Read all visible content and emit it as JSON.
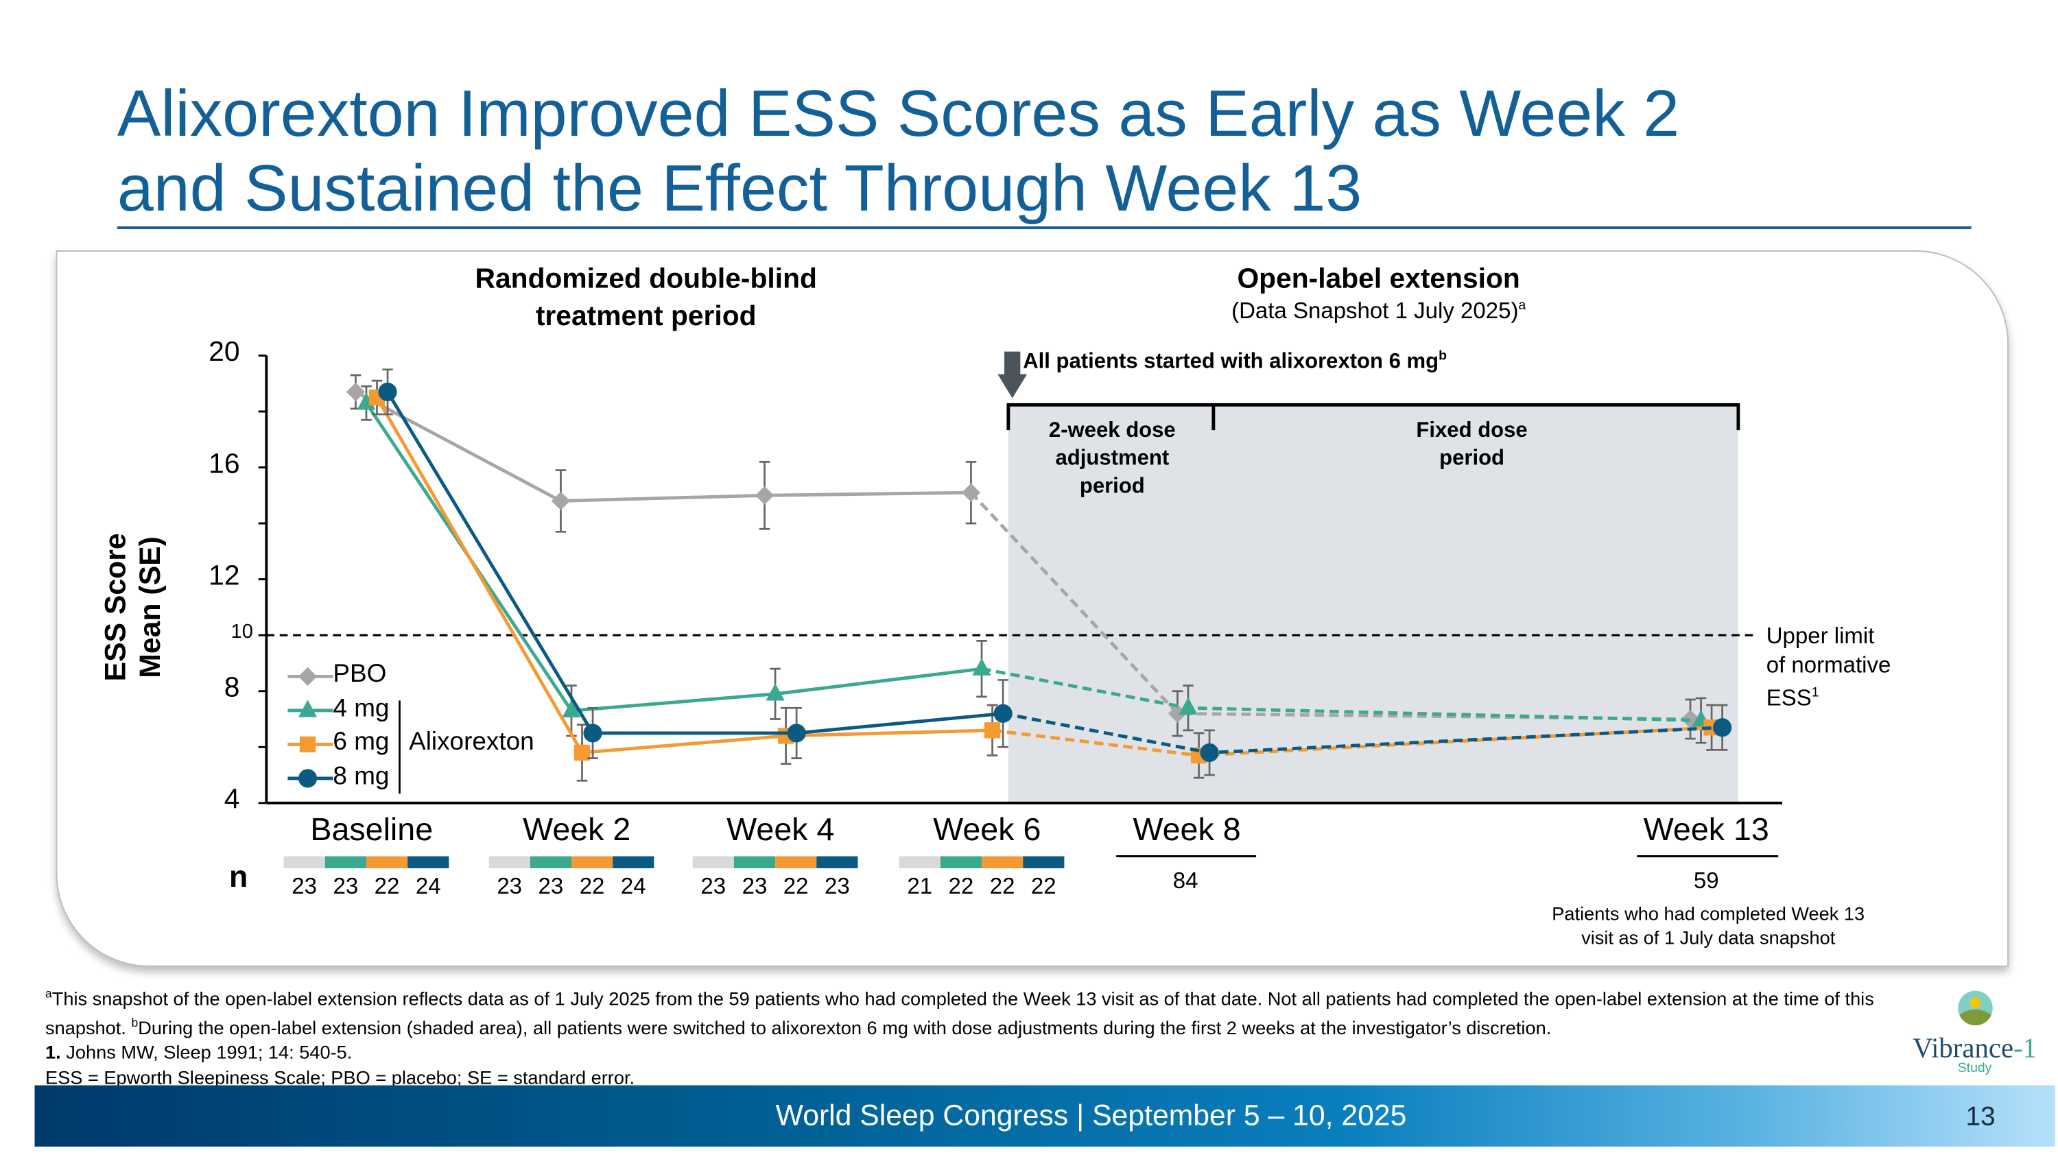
{
  "title_line1": "Alixorexton Improved ESS Scores as Early as Week 2",
  "title_line2": "and Sustained the Effect Through Week 13",
  "sections": {
    "rdb_line1": "Randomized double-blind",
    "rdb_line2": "treatment period",
    "ole_title": "Open-label extension",
    "ole_sub": "(Data Snapshot 1 July 2025)",
    "ole_sup": "a",
    "arrow_note": "All patients started with alixorexton 6 mg",
    "arrow_sup": "b",
    "dose_adj_1": "2-week dose",
    "dose_adj_2": "adjustment",
    "dose_adj_3": "period",
    "fixed_1": "Fixed dose",
    "fixed_2": "period",
    "ref_1": "Upper limit",
    "ref_2": "of normative",
    "ref_3": "ESS",
    "ref_sup": "1"
  },
  "chart_data": {
    "type": "line",
    "title": "",
    "ylabel_line1": "ESS Score",
    "ylabel_line2": "Mean (SE)",
    "ylim": [
      4,
      20
    ],
    "yticks": [
      "4",
      "8",
      "12",
      "16",
      "20"
    ],
    "ref_line": {
      "value": 10,
      "label": "10"
    },
    "categories": [
      "Baseline",
      "Week 2",
      "Week 4",
      "Week 6",
      "Week 8",
      "Week 13"
    ],
    "open_label_from": "Week 6",
    "legend_group_label": "Alixorexton",
    "series": [
      {
        "name": "PBO",
        "color": "#a6a6a6",
        "marker": "diamond",
        "values": [
          18.7,
          14.8,
          15.0,
          15.1,
          7.2,
          7.0
        ],
        "se": [
          0.6,
          1.1,
          1.2,
          1.1,
          0.8,
          0.7
        ]
      },
      {
        "name": "4 mg",
        "color": "#3aa98f",
        "marker": "triangle",
        "values": [
          18.3,
          7.3,
          7.9,
          8.8,
          7.4,
          6.95
        ],
        "se": [
          0.6,
          0.9,
          0.9,
          1.0,
          0.8,
          0.8
        ]
      },
      {
        "name": "6 mg",
        "color": "#f59a33",
        "marker": "square",
        "values": [
          18.5,
          5.8,
          6.4,
          6.6,
          5.7,
          6.7
        ],
        "se": [
          0.6,
          1.0,
          1.0,
          0.9,
          0.8,
          0.8
        ]
      },
      {
        "name": "8 mg",
        "color": "#0a5a82",
        "marker": "circle",
        "values": [
          18.7,
          6.5,
          6.5,
          7.2,
          5.8,
          6.7
        ],
        "se": [
          0.8,
          0.9,
          0.9,
          1.2,
          0.8,
          0.8
        ]
      }
    ],
    "n_label": "n",
    "n_per_arm": [
      [
        "23",
        "23",
        "22",
        "24"
      ],
      [
        "23",
        "23",
        "22",
        "24"
      ],
      [
        "23",
        "23",
        "22",
        "23"
      ],
      [
        "21",
        "22",
        "22",
        "22"
      ]
    ],
    "n_pooled": [
      "84",
      "59"
    ],
    "n_note_1": "Patients who had completed Week 13",
    "n_note_2": "visit as of 1 July data snapshot"
  },
  "footnotes": {
    "a_sup": "a",
    "a_text": "This snapshot of the open-label extension reflects data as of 1 July 2025 from the 59 patients who had completed the Week 13 visit as of that date. Not all patients had completed the open-label extension at the time of this snapshot. ",
    "b_sup": "b",
    "b_text": "During the open-label extension (shaded area), all patients were switched to alixorexton 6 mg with dose adjustments during the first 2 weeks at the investigator’s discretion.",
    "ref_num": "1.",
    "ref_text": " Johns MW, Sleep 1991; 14: 540-5.",
    "abbrev": "ESS = Epworth Sleepiness Scale; PBO = placebo; SE = standard error."
  },
  "logo": {
    "name": "Vibrance",
    "suffix": "-1",
    "sub": "Study"
  },
  "banner": {
    "text": "World Sleep Congress | September 5 – 10, 2025",
    "page": "13"
  }
}
